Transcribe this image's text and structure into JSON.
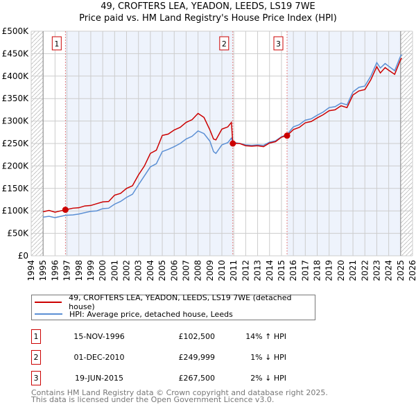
{
  "chart_data": {
    "type": "line",
    "title": "49, CROFTERS LEA, YEADON, LEEDS, LS19 7WE",
    "subtitle": "Price paid vs. HM Land Registry's House Price Index (HPI)",
    "xlim": [
      1994,
      2026
    ],
    "ylim": [
      0,
      500000
    ],
    "x_ticks": [
      "1994",
      "1995",
      "1996",
      "1997",
      "1998",
      "1999",
      "2000",
      "2001",
      "2002",
      "2003",
      "2004",
      "2005",
      "2006",
      "2007",
      "2008",
      "2009",
      "2010",
      "2011",
      "2012",
      "2013",
      "2014",
      "2015",
      "2016",
      "2017",
      "2018",
      "2019",
      "2020",
      "2021",
      "2022",
      "2023",
      "2024",
      "2025",
      "2026"
    ],
    "y_ticks": [
      {
        "v": 0,
        "l": "£0"
      },
      {
        "v": 50000,
        "l": "£50K"
      },
      {
        "v": 100000,
        "l": "£100K"
      },
      {
        "v": 150000,
        "l": "£150K"
      },
      {
        "v": 200000,
        "l": "£200K"
      },
      {
        "v": 250000,
        "l": "£250K"
      },
      {
        "v": 300000,
        "l": "£300K"
      },
      {
        "v": 350000,
        "l": "£350K"
      },
      {
        "v": 400000,
        "l": "£400K"
      },
      {
        "v": 450000,
        "l": "£450K"
      },
      {
        "v": 500000,
        "l": "£500K"
      }
    ],
    "grid": true,
    "data_range": [
      1995,
      2025
    ],
    "series": [
      {
        "name": "49, CROFTERS LEA, YEADON, LEEDS, LS19 7WE (detached house)",
        "color": "#cc0000",
        "x": [
          1995,
          1995.5,
          1996,
          1996.87,
          1997.5,
          1998,
          1998.5,
          1999,
          1999.5,
          2000,
          2000.5,
          2001,
          2001.5,
          2002,
          2002.5,
          2003,
          2003.5,
          2004,
          2004.5,
          2005,
          2005.5,
          2006,
          2006.5,
          2007,
          2007.5,
          2008,
          2008.5,
          2009,
          2009.3,
          2009.5,
          2010,
          2010.5,
          2010.8,
          2010.92,
          2011.5,
          2012,
          2012.5,
          2013,
          2013.5,
          2014,
          2014.5,
          2015,
          2015.47,
          2016,
          2016.5,
          2017,
          2017.5,
          2018,
          2018.5,
          2019,
          2019.5,
          2020,
          2020.5,
          2021,
          2021.5,
          2022,
          2022.5,
          2023,
          2023.3,
          2023.7,
          2024,
          2024.5,
          2025,
          2025.1
        ],
        "y": [
          98000,
          101000,
          97000,
          102500,
          106000,
          107000,
          111000,
          112000,
          116000,
          120000,
          121000,
          135000,
          139000,
          150000,
          156000,
          180000,
          200000,
          228000,
          235000,
          268000,
          271000,
          280000,
          286000,
          297000,
          303000,
          317000,
          308000,
          280000,
          260000,
          258000,
          282000,
          287000,
          297000,
          249999,
          250000,
          245000,
          244000,
          245000,
          243000,
          251000,
          254000,
          264000,
          267500,
          281000,
          286000,
          296000,
          299000,
          307000,
          314000,
          323000,
          325000,
          334000,
          330000,
          358000,
          367000,
          370000,
          392000,
          421000,
          407000,
          419000,
          413000,
          404000,
          437000,
          440000
        ]
      },
      {
        "name": "HPI: Average price, detached house, Leeds",
        "color": "#5b8fd4",
        "x": [
          1995,
          1995.5,
          1996,
          1996.87,
          1997.5,
          1998,
          1998.5,
          1999,
          1999.5,
          2000,
          2000.5,
          2001,
          2001.5,
          2002,
          2002.5,
          2003,
          2003.5,
          2004,
          2004.5,
          2005,
          2005.5,
          2006,
          2006.5,
          2007,
          2007.5,
          2008,
          2008.5,
          2009,
          2009.3,
          2009.5,
          2010,
          2010.5,
          2010.8,
          2010.92,
          2011.5,
          2012,
          2012.5,
          2013,
          2013.5,
          2014,
          2014.5,
          2015,
          2015.47,
          2016,
          2016.5,
          2017,
          2017.5,
          2018,
          2018.5,
          2019,
          2019.5,
          2020,
          2020.5,
          2021,
          2021.5,
          2022,
          2022.5,
          2023,
          2023.3,
          2023.7,
          2024,
          2024.5,
          2025,
          2025.1
        ],
        "y": [
          86000,
          88000,
          85000,
          90000,
          91000,
          93000,
          96000,
          99000,
          100000,
          105000,
          106000,
          115000,
          121000,
          130000,
          137000,
          158000,
          178000,
          198000,
          205000,
          232000,
          237000,
          243000,
          250000,
          260000,
          266000,
          278000,
          272000,
          255000,
          232000,
          228000,
          247000,
          252000,
          262000,
          253000,
          250000,
          247000,
          246000,
          247000,
          246000,
          253000,
          256000,
          265000,
          270000,
          287000,
          292000,
          302000,
          305000,
          313000,
          320000,
          330000,
          332000,
          340000,
          336000,
          365000,
          375000,
          378000,
          400000,
          430000,
          418000,
          428000,
          422000,
          412000,
          445000,
          448000
        ]
      }
    ],
    "sales": [
      {
        "label": "1",
        "x": 1996.87,
        "y": 102500,
        "date": "15-NOV-1996",
        "price": "£102,500",
        "hpi": "14% ↑ HPI"
      },
      {
        "label": "2",
        "x": 2010.92,
        "y": 249999,
        "date": "01-DEC-2010",
        "price": "£249,999",
        "hpi": "1% ↓ HPI"
      },
      {
        "label": "3",
        "x": 2015.47,
        "y": 267500,
        "date": "19-JUN-2015",
        "price": "£267,500",
        "hpi": "2% ↓ HPI"
      }
    ],
    "legend_position": "below"
  },
  "footer": {
    "line1": "Contains HM Land Registry data © Crown copyright and database right 2025.",
    "line2": "This data is licensed under the Open Government Licence v3.0."
  }
}
